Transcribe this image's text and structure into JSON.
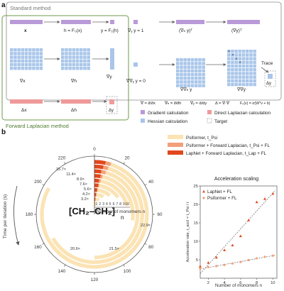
{
  "panel_a": {
    "letter": "a",
    "standard_title": "Standard method",
    "forward_title": "Forward Laplacian method",
    "row1": [
      "x",
      "h = F₀(x)",
      "y = F₁(h)",
      "∇ᵧ y = 1",
      "(∇ₕ y)ᵀ",
      "(∇y)ᵀ"
    ],
    "row2": [
      "∇x",
      "∇h",
      "∇y",
      "∇∇ᵧ y = 0",
      "∇∇ₕ y",
      "∇∇y"
    ],
    "row3": [
      "Δx",
      "Δh",
      "Δy"
    ],
    "trace_label": "Trace",
    "target_label": "Δy",
    "legend": {
      "defs": [
        "∇ = ∂/∂x",
        "∇ₕ = ∂/∂h",
        "∇ᵧ = d/dy",
        "Δ = ∇·∇",
        "F₀(v) = σ(Wᵀv + b)"
      ],
      "gradient": "Gradient calculation",
      "laplacian": "Direct Laplacian calculation",
      "hessian": "Hessian calculation",
      "target": "Target"
    }
  },
  "panel_b": {
    "letter": "b",
    "series": [
      {
        "name": "Psiformer, t_Psi"
      },
      {
        "name": "Psiformer + Forward Laplacian, t_Psi + FL"
      },
      {
        "name": "LapNet + Forward Laplacian, t_Lap + FL"
      }
    ],
    "polar_axis_label": "Time per iteration (s)",
    "polar_ticks": [
      "0",
      "20",
      "40",
      "60",
      "80",
      "100",
      "120",
      "140",
      "160",
      "180",
      "200",
      "220"
    ],
    "n_ticks": [
      "1",
      "2",
      "3",
      "4",
      "5",
      "6",
      "7",
      "8",
      "9",
      "10"
    ],
    "n_axis_label": "Number of monomers n",
    "speedup_labels_inner": [
      "3.2×",
      "4.2×",
      "5.6×",
      "7.6×",
      "8.9×",
      "11.4×",
      "15.7×"
    ],
    "speedup_labels_outer": [
      "20.6×",
      "21.5×",
      "22.9×"
    ],
    "polymer_formula": "[CH₂–CH₂]",
    "polymer_subscript": "n",
    "scaling": {
      "title": "Acceleration scaling",
      "legend_lap": "LapNet + FL",
      "legend_psi": "Psiformer + FL",
      "ylabel": "Acceleration rate, t_accl = t_Psi / t",
      "xlabel": "Number of monomers n",
      "x_ticks": [
        "2",
        "4",
        "6",
        "8",
        "10"
      ],
      "y_ticks": [
        "5",
        "10",
        "15",
        "20",
        "25"
      ]
    }
  },
  "chart_data": [
    {
      "type": "bar",
      "xlabel": "Number of monomers n",
      "ylabel": "Time per iteration (s)",
      "categories": [
        1,
        2,
        3,
        4,
        5,
        6,
        7,
        8,
        9,
        10
      ],
      "ylim": [
        0,
        220
      ],
      "series": [
        {
          "name": "Psiformer, t_Psi",
          "values": [
            7,
            12,
            18,
            26,
            36,
            50,
            66,
            120,
            160,
            200
          ]
        },
        {
          "name": "Psiformer + Forward Laplacian, t_Psi + FL",
          "values": [
            2,
            3,
            4,
            5,
            6,
            7,
            8,
            10,
            11,
            12
          ]
        },
        {
          "name": "LapNet + Forward Laplacian, t_Lap + FL",
          "values": [
            1,
            2,
            3,
            4,
            5,
            5,
            6,
            6,
            7,
            8
          ]
        }
      ]
    },
    {
      "type": "scatter",
      "title": "Acceleration scaling",
      "xlabel": "Number of monomers n",
      "ylabel": "Acceleration rate, t_accl = t_Psi / t",
      "xlim": [
        1,
        10.5
      ],
      "ylim": [
        0,
        25
      ],
      "series": [
        {
          "name": "LapNet + FL",
          "x": [
            1,
            2,
            3,
            4,
            5,
            6,
            7,
            8,
            9,
            10
          ],
          "y": [
            3.2,
            4.2,
            5.6,
            7.6,
            8.9,
            11.4,
            15.7,
            20.6,
            21.5,
            22.9
          ]
        },
        {
          "name": "Psiformer + FL",
          "x": [
            1,
            2,
            3,
            4,
            5,
            6,
            7,
            8,
            9,
            10
          ],
          "y": [
            2.6,
            3.0,
            3.3,
            3.6,
            4.0,
            4.4,
            4.9,
            5.4,
            5.8,
            6.1
          ]
        }
      ]
    }
  ]
}
